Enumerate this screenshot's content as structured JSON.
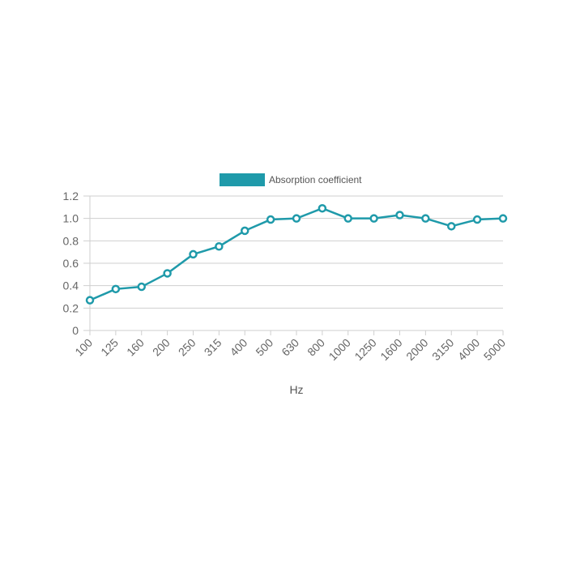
{
  "chart_data": {
    "type": "line",
    "title": "",
    "xlabel": "Hz",
    "ylabel": "",
    "categories": [
      "100",
      "125",
      "160",
      "200",
      "250",
      "315",
      "400",
      "500",
      "630",
      "800",
      "1000",
      "1250",
      "1600",
      "2000",
      "3150",
      "4000",
      "5000"
    ],
    "series": [
      {
        "name": "Absorption coefficient",
        "values": [
          0.27,
          0.37,
          0.39,
          0.51,
          0.68,
          0.75,
          0.89,
          0.99,
          1.0,
          1.09,
          1.0,
          1.0,
          1.03,
          1.0,
          0.93,
          0.99,
          1.0
        ],
        "color": "#1f9aaa"
      }
    ],
    "ylim": [
      0,
      1.2
    ],
    "yticks": [
      "0",
      "0.2",
      "0.4",
      "0.6",
      "0.8",
      "1.0",
      "1.2"
    ],
    "grid": true,
    "legend": "top"
  }
}
